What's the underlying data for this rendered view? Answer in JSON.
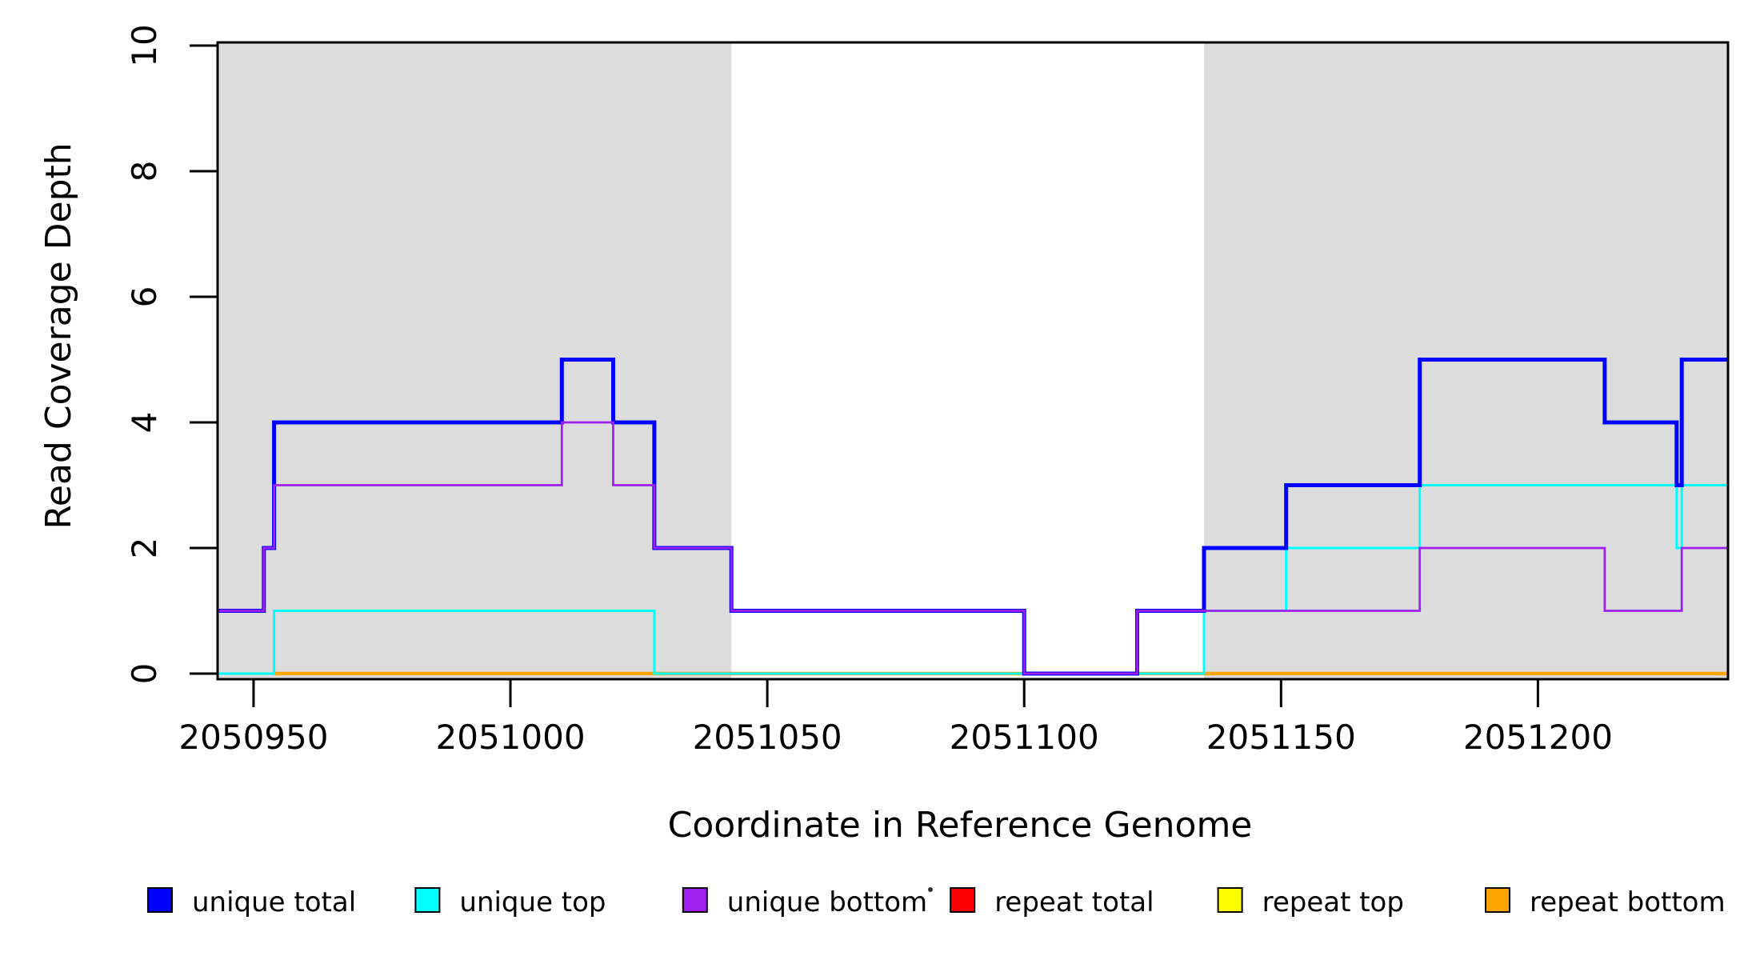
{
  "chart_data": {
    "type": "line",
    "subtype": "step",
    "title": "",
    "xlabel": "Coordinate in Reference Genome",
    "ylabel": "Read Coverage Depth",
    "xlim": [
      2050943,
      2051237
    ],
    "ylim": [
      0,
      10
    ],
    "x_ticks": [
      2050950,
      2051000,
      2051050,
      2051100,
      2051150,
      2051200
    ],
    "y_ticks": [
      0,
      2,
      4,
      6,
      8,
      10
    ],
    "grid": false,
    "background_color": "#ffffff",
    "shade_color": "#dcdcdc",
    "axis_color": "#000000",
    "legend_position": "bottom",
    "shaded_regions": [
      {
        "x_start": 2050943,
        "x_end": 2051043
      },
      {
        "x_start": 2051135,
        "x_end": 2051237
      }
    ],
    "series": [
      {
        "name": "repeat total",
        "color": "#FF0000",
        "width": 3,
        "points": [
          [
            2050954,
            0
          ]
        ],
        "x_end": 2051237
      },
      {
        "name": "repeat top",
        "color": "#FFFF00",
        "width": 3,
        "points": [
          [
            2050954,
            0
          ]
        ],
        "x_end": 2051237
      },
      {
        "name": "repeat bottom",
        "color": "#FFA500",
        "width": 4.5,
        "points": [
          [
            2050954,
            0
          ]
        ],
        "x_end": 2051237
      },
      {
        "name": "unique top",
        "color": "#00FFFF",
        "width": 3,
        "points": [
          [
            2050943,
            0
          ],
          [
            2050954,
            1
          ],
          [
            2051028,
            0
          ],
          [
            2051135,
            1
          ],
          [
            2051151,
            2
          ],
          [
            2051177,
            3
          ],
          [
            2051227,
            2
          ],
          [
            2051228,
            3
          ]
        ],
        "x_end": 2051237
      },
      {
        "name": "unique total",
        "color": "#0000FF",
        "width": 5,
        "points": [
          [
            2050943,
            1
          ],
          [
            2050952,
            2
          ],
          [
            2050954,
            4
          ],
          [
            2051010,
            5
          ],
          [
            2051020,
            4
          ],
          [
            2051028,
            2
          ],
          [
            2051043,
            1
          ],
          [
            2051100,
            0
          ],
          [
            2051122,
            1
          ],
          [
            2051135,
            2
          ],
          [
            2051151,
            3
          ],
          [
            2051177,
            5
          ],
          [
            2051213,
            4
          ],
          [
            2051227,
            3
          ],
          [
            2051228,
            5
          ]
        ],
        "x_end": 2051237
      },
      {
        "name": "unique bottom",
        "color": "#A020F0",
        "width": 2.8,
        "points": [
          [
            2050943,
            1
          ],
          [
            2050952,
            2
          ],
          [
            2050954,
            3
          ],
          [
            2051010,
            4
          ],
          [
            2051020,
            3
          ],
          [
            2051028,
            2
          ],
          [
            2051043,
            1
          ],
          [
            2051100,
            0
          ],
          [
            2051122,
            1
          ],
          [
            2051177,
            2
          ],
          [
            2051213,
            1
          ],
          [
            2051228,
            2
          ]
        ],
        "x_end": 2051237
      },
      {
        "name": "repeat total (legend-only level)",
        "color": "#FF0000",
        "width": 0,
        "points": [],
        "x_end": 2051237
      }
    ],
    "legend": [
      {
        "label": "unique total",
        "color": "#0000FF"
      },
      {
        "label": "unique top",
        "color": "#00FFFF"
      },
      {
        "label": "unique bottom",
        "color": "#A020F0"
      },
      {
        "label": "repeat total",
        "color": "#FF0000"
      },
      {
        "label": "repeat top",
        "color": "#FFFF00"
      },
      {
        "label": "repeat bottom",
        "color": "#FFA500"
      }
    ],
    "legend_stray_dot": "·"
  }
}
